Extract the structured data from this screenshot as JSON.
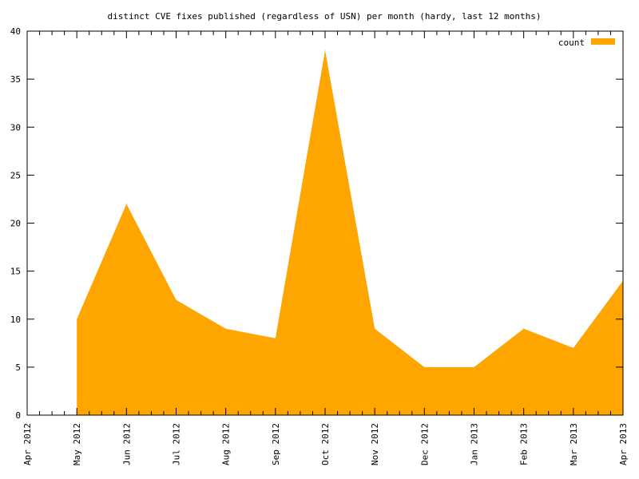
{
  "chart_data": {
    "type": "area",
    "title": "distinct CVE fixes published (regardless of USN) per month (hardy, last 12 months)",
    "xlabel": "",
    "ylabel": "",
    "categories": [
      "Apr 2012",
      "May 2012",
      "Jun 2012",
      "Jul 2012",
      "Aug 2012",
      "Sep 2012",
      "Oct 2012",
      "Nov 2012",
      "Dec 2012",
      "Jan 2013",
      "Feb 2013",
      "Mar 2013",
      "Apr 2013"
    ],
    "series": [
      {
        "name": "count",
        "color": "#ffa500",
        "points": [
          {
            "x": "May 2012",
            "y": 10
          },
          {
            "x": "Jun 2012",
            "y": 22
          },
          {
            "x": "Jul 2012",
            "y": 12
          },
          {
            "x": "Aug 2012",
            "y": 9
          },
          {
            "x": "Sep 2012",
            "y": 8
          },
          {
            "x": "Oct 2012",
            "y": 38
          },
          {
            "x": "Nov 2012",
            "y": 9
          },
          {
            "x": "Dec 2012",
            "y": 5
          },
          {
            "x": "Jan 2013",
            "y": 5
          },
          {
            "x": "Feb 2013",
            "y": 9
          },
          {
            "x": "Mar 2013",
            "y": 7
          },
          {
            "x": "Apr 2013",
            "y": 14
          }
        ]
      }
    ],
    "ylim": [
      0,
      40
    ],
    "yticks": [
      0,
      5,
      10,
      15,
      20,
      25,
      30,
      35,
      40
    ],
    "grid": false,
    "legend_position": "top-right"
  }
}
